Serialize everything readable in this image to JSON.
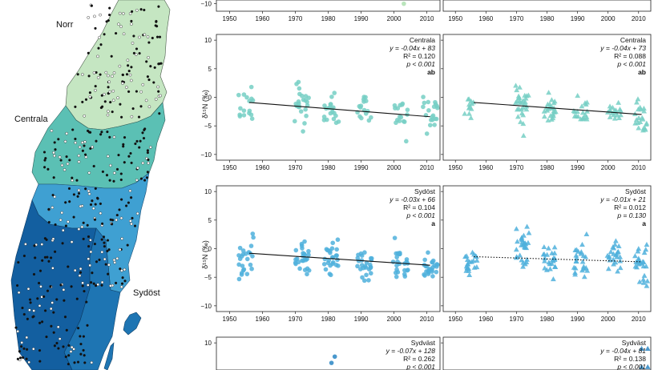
{
  "map": {
    "region_labels": [
      "Norr",
      "Centrala",
      "Sydöst"
    ],
    "colors": {
      "Norr": "#c5e6c2",
      "Centrala": "#5bc0b4",
      "Sydöst_light": "#3fa0d2",
      "Sydöst": "#1e75b3",
      "Sydväst": "#135fa0"
    }
  },
  "chart_data": {
    "type": "scatter",
    "x_ticks": [
      "1950",
      "1960",
      "1970",
      "1980",
      "1990",
      "2000",
      "2010"
    ],
    "xlim": [
      1946,
      2014
    ],
    "ylabel": "δ¹⁵N (‰)",
    "panels": [
      {
        "region": "Norr",
        "column": "left",
        "color": "#aee0b0",
        "marker": "circle",
        "y_ticks": [
          "−10"
        ],
        "ylim": [
          -11,
          -9.5
        ],
        "visible_part": "bottom",
        "points": [
          [
            2003,
            -10
          ]
        ]
      },
      {
        "region": "Norr",
        "column": "right",
        "color": "#aee0b0",
        "marker": "triangle",
        "y_ticks": [],
        "ylim": [
          -11,
          -9.5
        ],
        "visible_part": "bottom",
        "points": []
      },
      {
        "region": "Centrala",
        "column": "left",
        "color": "#76cfc4",
        "marker": "circle",
        "y_ticks": [
          "10",
          "5",
          "0",
          "−5",
          "−10"
        ],
        "ylim": [
          -11,
          11
        ],
        "stats": {
          "name": "Centrala",
          "equation": "y = -0.04x + 83",
          "r2": "R² = 0.120",
          "p": "p < 0.001",
          "letter": "ab"
        },
        "trend": {
          "type": "solid",
          "x": [
            1956,
            2011
          ],
          "y": [
            -0.9,
            -3.4
          ]
        },
        "groups": [
          {
            "year": 1955,
            "n": 16,
            "mean": -1.8,
            "sd": 1.3
          },
          {
            "year": 1972,
            "n": 24,
            "mean": -1.0,
            "sd": 2.0
          },
          {
            "year": 1981,
            "n": 20,
            "mean": -2.8,
            "sd": 1.6
          },
          {
            "year": 1991,
            "n": 16,
            "mean": -2.7,
            "sd": 1.2
          },
          {
            "year": 2002,
            "n": 16,
            "mean": -3.0,
            "sd": 1.4
          },
          {
            "year": 2011,
            "n": 20,
            "mean": -3.6,
            "sd": 1.8
          }
        ]
      },
      {
        "region": "Centrala",
        "column": "right",
        "color": "#76cfc4",
        "marker": "triangle",
        "y_ticks": [],
        "ylim": [
          -11,
          11
        ],
        "stats": {
          "name": "Centrala",
          "equation": "y = -0.04x + 73",
          "r2": "R² = 0.088",
          "p": "p < 0.001",
          "letter": "ab"
        },
        "trend": {
          "type": "solid",
          "x": [
            1956,
            2011
          ],
          "y": [
            -0.9,
            -3.0
          ]
        },
        "groups": [
          {
            "year": 1955,
            "n": 12,
            "mean": -1.6,
            "sd": 0.9
          },
          {
            "year": 1972,
            "n": 30,
            "mean": -0.8,
            "sd": 2.3
          },
          {
            "year": 1981,
            "n": 24,
            "mean": -2.2,
            "sd": 1.2
          },
          {
            "year": 1991,
            "n": 20,
            "mean": -2.5,
            "sd": 1.1
          },
          {
            "year": 2002,
            "n": 18,
            "mean": -2.6,
            "sd": 1.0
          },
          {
            "year": 2011,
            "n": 22,
            "mean": -3.3,
            "sd": 1.6
          }
        ]
      },
      {
        "region": "Sydöst",
        "column": "left",
        "color": "#4fb0dc",
        "marker": "circle",
        "y_ticks": [
          "10",
          "5",
          "0",
          "−5",
          "−10"
        ],
        "ylim": [
          -11,
          11
        ],
        "stats": {
          "name": "Sydöst",
          "equation": "y = -0.03x + 66",
          "r2": "R² = 0.104",
          "p": "p < 0.001",
          "letter": "a"
        },
        "trend": {
          "type": "solid",
          "x": [
            1956,
            2011
          ],
          "y": [
            -0.8,
            -2.9
          ]
        },
        "groups": [
          {
            "year": 1955,
            "n": 24,
            "mean": -2.0,
            "sd": 1.8
          },
          {
            "year": 1972,
            "n": 26,
            "mean": -0.9,
            "sd": 1.7
          },
          {
            "year": 1981,
            "n": 26,
            "mean": -2.3,
            "sd": 1.5
          },
          {
            "year": 1991,
            "n": 26,
            "mean": -2.6,
            "sd": 1.5
          },
          {
            "year": 2002,
            "n": 24,
            "mean": -2.5,
            "sd": 1.6
          },
          {
            "year": 2011,
            "n": 26,
            "mean": -3.4,
            "sd": 1.1
          }
        ]
      },
      {
        "region": "Sydöst",
        "column": "right",
        "color": "#4fb0dc",
        "marker": "triangle",
        "y_ticks": [],
        "ylim": [
          -11,
          11
        ],
        "stats": {
          "name": "Sydöst",
          "equation": "y = -0.01x + 21",
          "r2": "R² = 0.012",
          "p": "p = 0.130",
          "letter": "a"
        },
        "trend": {
          "type": "dotted",
          "x": [
            1956,
            2011
          ],
          "y": [
            -1.4,
            -2.3
          ]
        },
        "groups": [
          {
            "year": 1955,
            "n": 22,
            "mean": -2.2,
            "sd": 1.2
          },
          {
            "year": 1972,
            "n": 28,
            "mean": -0.6,
            "sd": 2.2
          },
          {
            "year": 1981,
            "n": 24,
            "mean": -2.2,
            "sd": 1.5
          },
          {
            "year": 1991,
            "n": 24,
            "mean": -2.4,
            "sd": 1.6
          },
          {
            "year": 2002,
            "n": 24,
            "mean": -1.8,
            "sd": 1.3
          },
          {
            "year": 2011,
            "n": 26,
            "mean": -2.7,
            "sd": 1.7
          }
        ]
      },
      {
        "region": "Sydväst",
        "column": "left",
        "color": "#2a86c4",
        "marker": "circle",
        "y_ticks": [
          "10"
        ],
        "ylim": [
          -11,
          11
        ],
        "visible_part": "top",
        "stats": {
          "name": "Sydväst",
          "equation": "y = -0.07x + 128",
          "r2": "R² = 0.262",
          "p": "p < 0.001"
        },
        "points": [
          [
            1981,
            6.5
          ],
          [
            1982,
            7.6
          ]
        ]
      },
      {
        "region": "Sydväst",
        "column": "right",
        "color": "#2a86c4",
        "marker": "triangle",
        "y_ticks": [],
        "ylim": [
          -11,
          11
        ],
        "visible_part": "top",
        "stats": {
          "name": "Sydväst",
          "equation": "y = -0.04x + 81",
          "r2": "R² = 0.138",
          "p": "p < 0.001"
        },
        "points": [
          [
            2011,
            9.0
          ],
          [
            2013,
            9.0
          ],
          [
            2011,
            5.8
          ],
          [
            2013,
            5.8
          ]
        ]
      }
    ]
  }
}
